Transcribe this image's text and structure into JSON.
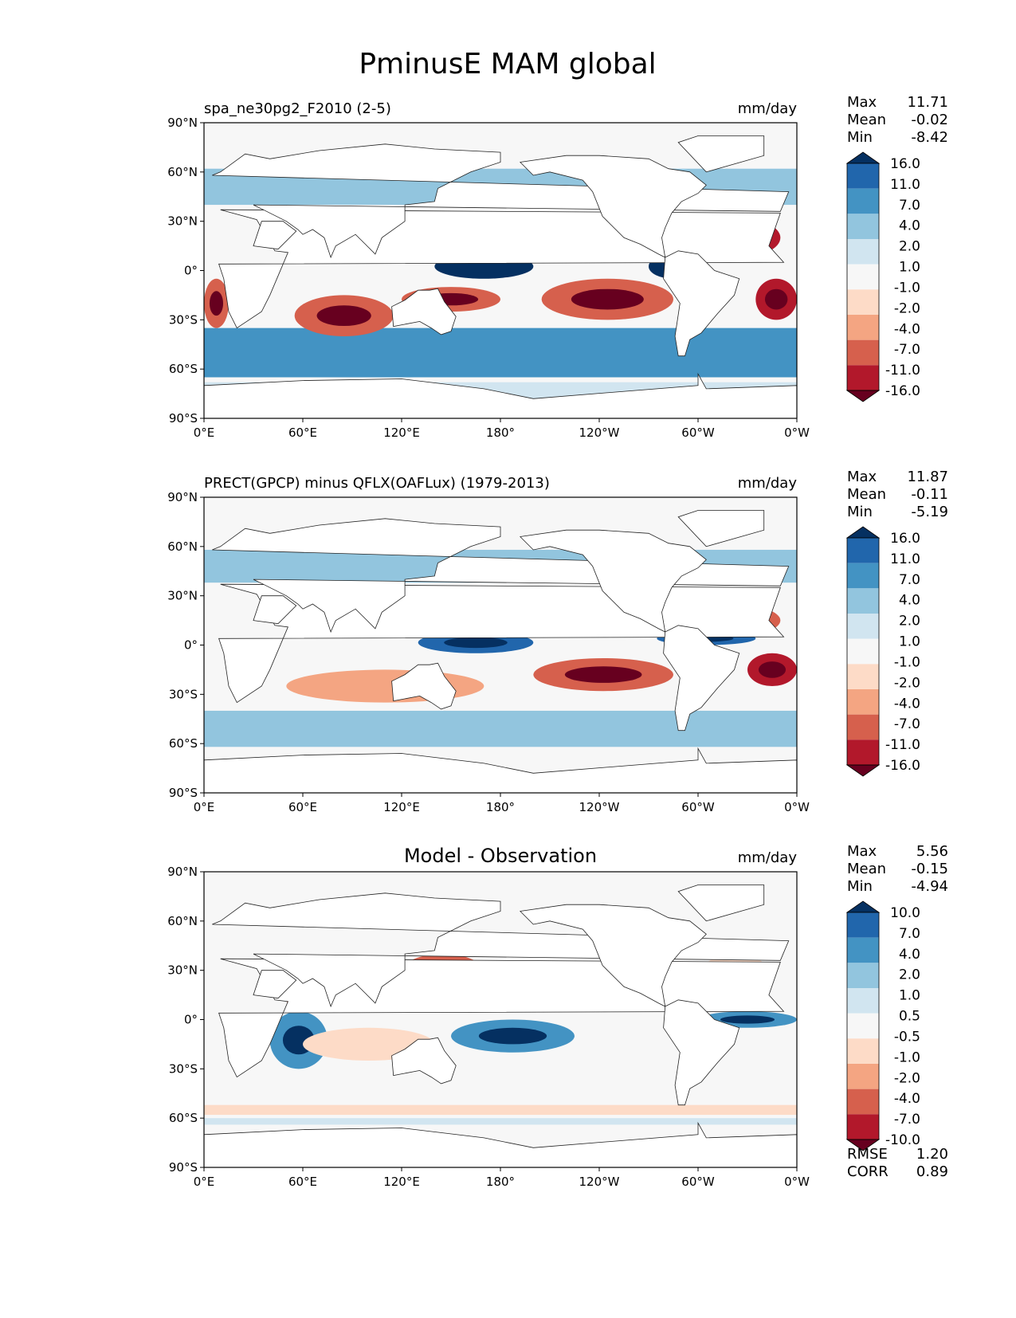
{
  "title": "PminusE MAM global",
  "axes": {
    "lat_ticks": [
      "90°N",
      "60°N",
      "30°N",
      "0°",
      "30°S",
      "60°S",
      "90°S"
    ],
    "lon_ticks": [
      "0°E",
      "60°E",
      "120°E",
      "180°",
      "120°W",
      "60°W",
      "0°W"
    ]
  },
  "chart_data": [
    {
      "type": "heatmap",
      "left_title": "spa_ne30pg2_F2010 (2-5)",
      "center_title": "",
      "units": "mm/day",
      "stats": [
        [
          "Max",
          "11.71"
        ],
        [
          "Mean",
          "-0.02"
        ],
        [
          "Min",
          "-8.42"
        ]
      ],
      "colorbar_levels": [
        "16.0",
        "11.0",
        "7.0",
        "4.0",
        "2.0",
        "1.0",
        "-1.0",
        "-2.0",
        "-4.0",
        "-7.0",
        "-11.0",
        "-16.0"
      ],
      "colorbar_colors": [
        "#053061",
        "#2166ac",
        "#4393c3",
        "#92c5de",
        "#d1e5f0",
        "#f7f7f7",
        "#fddbc7",
        "#f4a582",
        "#d6604d",
        "#b2182b",
        "#67001f"
      ],
      "xlim": [
        0,
        360
      ],
      "ylim": [
        -90,
        90
      ],
      "features": [
        {
          "kind": "band",
          "lat": [
            -65,
            -35
          ],
          "value": 3
        },
        {
          "kind": "band",
          "lat": [
            -78,
            -68
          ],
          "value": 1
        },
        {
          "kind": "band",
          "lat": [
            40,
            62
          ],
          "value": 2.5
        },
        {
          "kind": "blob",
          "lon": [
            135,
            245
          ],
          "lat": [
            10,
            30
          ],
          "value": -3
        },
        {
          "kind": "blob",
          "lon": [
            300,
            350
          ],
          "lat": [
            8,
            32
          ],
          "value": -4
        },
        {
          "kind": "blob",
          "lon": [
            205,
            285
          ],
          "lat": [
            -30,
            -5
          ],
          "value": -3
        },
        {
          "kind": "blob",
          "lon": [
            335,
            360
          ],
          "lat": [
            -30,
            -5
          ],
          "value": -4
        },
        {
          "kind": "blob",
          "lon": [
            0,
            15
          ],
          "lat": [
            -35,
            -5
          ],
          "value": -3
        },
        {
          "kind": "blob",
          "lon": [
            55,
            115
          ],
          "lat": [
            -40,
            -15
          ],
          "value": -3
        },
        {
          "kind": "blob",
          "lon": [
            40,
            72
          ],
          "lat": [
            12,
            28
          ],
          "value": -4
        },
        {
          "kind": "blob",
          "lon": [
            140,
            200
          ],
          "lat": [
            -5,
            10
          ],
          "value": 6
        },
        {
          "kind": "blob",
          "lon": [
            270,
            300
          ],
          "lat": [
            -5,
            10
          ],
          "value": 5
        },
        {
          "kind": "blob",
          "lon": [
            120,
            180
          ],
          "lat": [
            -25,
            -10
          ],
          "value": -3
        }
      ]
    },
    {
      "type": "heatmap",
      "left_title": "PRECT(GPCP) minus QFLX(OAFLux) (1979-2013)",
      "center_title": "",
      "units": "mm/day",
      "stats": [
        [
          "Max",
          "11.87"
        ],
        [
          "Mean",
          "-0.11"
        ],
        [
          "Min",
          "-5.19"
        ]
      ],
      "colorbar_levels": [
        "16.0",
        "11.0",
        "7.0",
        "4.0",
        "2.0",
        "1.0",
        "-1.0",
        "-2.0",
        "-4.0",
        "-7.0",
        "-11.0",
        "-16.0"
      ],
      "colorbar_colors": [
        "#053061",
        "#2166ac",
        "#4393c3",
        "#92c5de",
        "#d1e5f0",
        "#f7f7f7",
        "#fddbc7",
        "#f4a582",
        "#d6604d",
        "#b2182b",
        "#67001f"
      ],
      "xlim": [
        0,
        360
      ],
      "ylim": [
        -90,
        90
      ],
      "features": [
        {
          "kind": "band",
          "lat": [
            -62,
            -40
          ],
          "value": 2.5
        },
        {
          "kind": "band",
          "lat": [
            38,
            58
          ],
          "value": 2.5
        },
        {
          "kind": "blob",
          "lon": [
            140,
            260
          ],
          "lat": [
            10,
            28
          ],
          "value": -2.5
        },
        {
          "kind": "blob",
          "lon": [
            290,
            350
          ],
          "lat": [
            5,
            25
          ],
          "value": -3
        },
        {
          "kind": "blob",
          "lon": [
            200,
            285
          ],
          "lat": [
            -28,
            -8
          ],
          "value": -3
        },
        {
          "kind": "blob",
          "lon": [
            330,
            360
          ],
          "lat": [
            -25,
            -5
          ],
          "value": -4
        },
        {
          "kind": "blob",
          "lon": [
            50,
            170
          ],
          "lat": [
            -35,
            -15
          ],
          "value": -2.5
        },
        {
          "kind": "blob",
          "lon": [
            130,
            200
          ],
          "lat": [
            -5,
            8
          ],
          "value": 4.5
        },
        {
          "kind": "blob",
          "lon": [
            275,
            335
          ],
          "lat": [
            0,
            8
          ],
          "value": 4
        }
      ]
    },
    {
      "type": "heatmap",
      "left_title": "",
      "center_title": "Model - Observation",
      "units": "mm/day",
      "stats": [
        [
          "Max",
          "5.56"
        ],
        [
          "Mean",
          "-0.15"
        ],
        [
          "Min",
          "-4.94"
        ]
      ],
      "colorbar_levels": [
        "10.0",
        "7.0",
        "4.0",
        "2.0",
        "1.0",
        "0.5",
        "-0.5",
        "-1.0",
        "-2.0",
        "-4.0",
        "-7.0",
        "-10.0"
      ],
      "colorbar_colors": [
        "#053061",
        "#2166ac",
        "#4393c3",
        "#92c5de",
        "#d1e5f0",
        "#f7f7f7",
        "#fddbc7",
        "#f4a582",
        "#d6604d",
        "#b2182b",
        "#67001f"
      ],
      "xlim": [
        0,
        360
      ],
      "ylim": [
        -90,
        90
      ],
      "rmse": "1.20",
      "corr": "0.89",
      "features": [
        {
          "kind": "blob",
          "lon": [
            120,
            170
          ],
          "lat": [
            18,
            40
          ],
          "value": -3
        },
        {
          "kind": "blob",
          "lon": [
            40,
            75
          ],
          "lat": [
            -30,
            5
          ],
          "value": 3
        },
        {
          "kind": "blob",
          "lon": [
            150,
            225
          ],
          "lat": [
            -20,
            0
          ],
          "value": 3
        },
        {
          "kind": "blob",
          "lon": [
            300,
            360
          ],
          "lat": [
            -5,
            5
          ],
          "value": 3
        },
        {
          "kind": "blob",
          "lon": [
            300,
            345
          ],
          "lat": [
            10,
            40
          ],
          "value": -1.5
        },
        {
          "kind": "blob",
          "lon": [
            60,
            140
          ],
          "lat": [
            -25,
            -5
          ],
          "value": -1.2
        },
        {
          "kind": "band",
          "lat": [
            -58,
            -52
          ],
          "value": -1.5
        },
        {
          "kind": "band",
          "lat": [
            -64,
            -60
          ],
          "value": 1.2
        },
        {
          "kind": "blob",
          "lon": [
            50,
            75
          ],
          "lat": [
            5,
            20
          ],
          "value": -3
        }
      ]
    }
  ]
}
